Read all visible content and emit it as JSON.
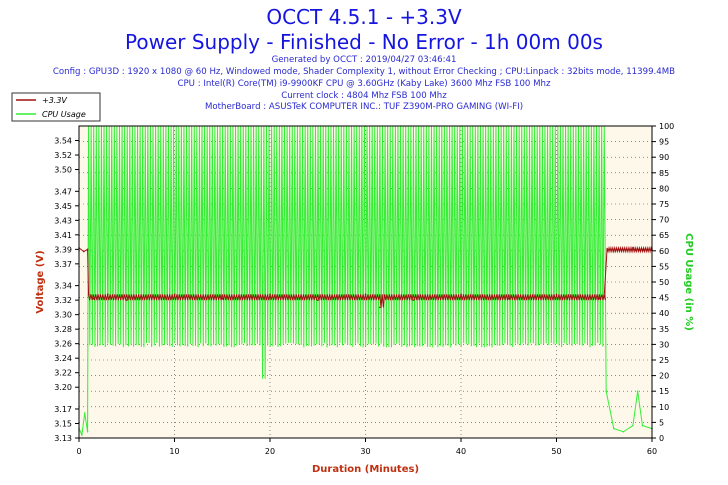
{
  "header": {
    "title": "OCCT 4.5.1 - +3.3V",
    "subtitle": "Power Supply - Finished - No Error - 1h 00m 00s",
    "info_lines": [
      "Generated by OCCT : 2019/04/27 03:46:41",
      "Config : GPU3D : 1920 x 1080 @ 60 Hz, Windowed mode, Shader Complexity 1, without Error Checking ; CPU:Linpack : 32bits mode, 11399.4MB",
      "CPU : Intel(R) Core(TM) i9-9900KF CPU @ 3.60GHz (Kaby Lake) 3600 Mhz FSB 100 Mhz",
      "Current clock : 4804 Mhz FSB 100 Mhz",
      "MotherBoard : ASUSTeK COMPUTER INC.: TUF Z390M-PRO GAMING (WI-FI)"
    ]
  },
  "colors": {
    "voltage": "#a01010",
    "cpu": "#33ee33",
    "plot_bg": "#fdf8ea",
    "axis_label": "#c03010",
    "cpu_axis_label": "#22cc22",
    "header": "#1515e0"
  },
  "chart_data": {
    "type": "line",
    "xlabel": "Duration (Minutes)",
    "ylabel": "Voltage (V)",
    "y2label": "CPU Usage (in %)",
    "xlim": [
      0,
      60
    ],
    "ylim": [
      3.13,
      3.56
    ],
    "y2lim": [
      0,
      100
    ],
    "x_ticks": [
      "0",
      "10",
      "20",
      "30",
      "40",
      "50",
      "60"
    ],
    "y_ticks": [
      "3.13",
      "3.15",
      "3.17",
      "3.20",
      "3.22",
      "3.24",
      "3.26",
      "3.28",
      "3.30",
      "3.32",
      "3.34",
      "3.37",
      "3.39",
      "3.41",
      "3.43",
      "3.45",
      "3.47",
      "3.50",
      "3.52",
      "3.54"
    ],
    "y2_ticks": [
      "0",
      "5",
      "10",
      "15",
      "20",
      "25",
      "30",
      "35",
      "40",
      "45",
      "50",
      "55",
      "60",
      "65",
      "70",
      "75",
      "80",
      "85",
      "90",
      "95",
      "100"
    ],
    "grid": true,
    "legend_position": "top-left",
    "series": [
      {
        "name": "+3.3V",
        "axis": "left",
        "x": [
          0,
          0.5,
          0.9,
          1.0,
          1.5,
          3,
          5,
          10,
          15,
          20,
          25,
          30,
          31.5,
          32,
          35,
          40,
          45,
          50,
          54.5,
          55.0,
          55.3,
          56,
          58,
          60
        ],
        "y": [
          3.392,
          3.387,
          3.39,
          3.328,
          3.322,
          3.328,
          3.32,
          3.328,
          3.322,
          3.328,
          3.32,
          3.328,
          3.31,
          3.326,
          3.32,
          3.328,
          3.322,
          3.328,
          3.322,
          3.326,
          3.39,
          3.387,
          3.392,
          3.39
        ]
      },
      {
        "name": "CPU Usage",
        "axis": "right",
        "x": [
          0,
          0.3,
          0.6,
          0.9,
          1.0,
          55.0,
          55.2,
          56,
          57,
          58,
          58.5,
          59,
          60
        ],
        "y": [
          3,
          1,
          8,
          2,
          100,
          100,
          15,
          3,
          2,
          4,
          15,
          4,
          3
        ],
        "note_pattern": "oscillating 29-100 between 1 and 55 minutes"
      }
    ]
  }
}
